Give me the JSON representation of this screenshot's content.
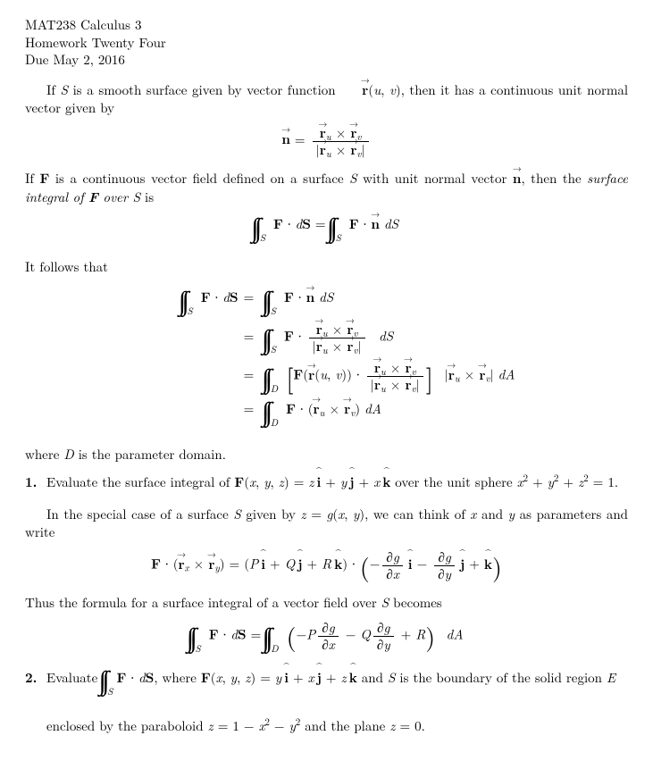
{
  "header": {
    "course": "MAT238 Calculus 3",
    "title": "Homework Twenty Four",
    "due": "Due May 2, 2016"
  },
  "para1a": "If ",
  "para1b": " is a smooth surface given by vector function ",
  "para1c": ", then it has a continuous unit normal vector given by",
  "para2a": "If ",
  "para2b": " is a continuous vector field defined on a surface ",
  "para2c": " with unit normal vector ",
  "para2d": ", then the ",
  "para2e": "surface integral of ",
  "para2f": " over ",
  "para2g": " is",
  "followsText": "It follows that",
  "whereD": "where ",
  "whereD2": " is the parameter domain.",
  "prob1a": "Evaluate the surface integral of ",
  "prob1b": " over the unit sphere ",
  "specialA": "In the special case of a surface ",
  "specialB": " given by ",
  "specialC": ", we can think of ",
  "specialD": " and ",
  "specialE": " as parameters and write",
  "thusText": "Thus the formula for a surface integral of a vector field over ",
  "thusText2": " becomes",
  "prob2a": "Evaluate ",
  "prob2b": ", where ",
  "prob2c": " and ",
  "prob2d": " is the boundary of the solid region ",
  "prob2e": "enclosed by the paraboloid ",
  "prob2f": " and the plane ",
  "sym": {
    "S": "S",
    "F": "F",
    "D": "D",
    "E": "E",
    "r": "r",
    "n": "n",
    "u": "u",
    "v": "v",
    "x": "x",
    "y": "y",
    "z": "z",
    "g": "g",
    "P": "P",
    "Q": "Q",
    "R": "R",
    "i": "i",
    "j": "j",
    "k": "k",
    "dS": "dS",
    "dA": "dA",
    "one": "1",
    "two": "2",
    "zero": "0",
    "period": ".",
    "eq": " = ",
    "plus": " + ",
    "minus": " − ",
    "dot": " ∙ ",
    "cross": " × ",
    "partial": "∂"
  },
  "labels": {
    "p1": "1.",
    "p2": "2."
  }
}
